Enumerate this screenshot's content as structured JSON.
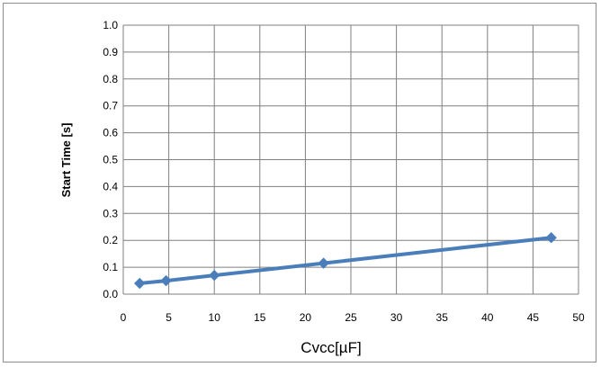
{
  "chart_data": {
    "type": "line",
    "title": "",
    "xlabel": "Cvcc[µF]",
    "ylabel": "Start Time [s]",
    "xlim": [
      0,
      50
    ],
    "ylim": [
      0,
      1.0
    ],
    "x_ticks": [
      "0",
      "5",
      "10",
      "15",
      "20",
      "25",
      "30",
      "35",
      "40",
      "45",
      "50"
    ],
    "y_ticks": [
      "0.0",
      "0.1",
      "0.2",
      "0.3",
      "0.4",
      "0.5",
      "0.6",
      "0.7",
      "0.8",
      "0.9",
      "1.0"
    ],
    "grid": true,
    "legend": "none",
    "series": [
      {
        "color": "#4a7ebb",
        "marker": "diamond",
        "x": [
          1.8,
          4.7,
          10,
          22,
          47
        ],
        "y": [
          0.04,
          0.05,
          0.07,
          0.115,
          0.21
        ]
      }
    ]
  }
}
